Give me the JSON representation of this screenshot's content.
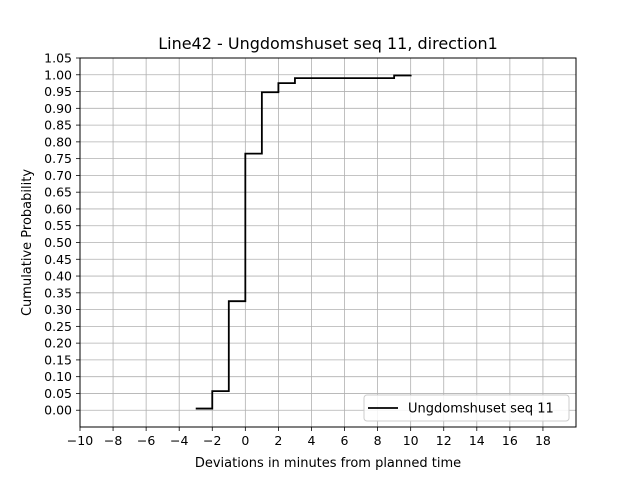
{
  "chart_data": {
    "type": "line",
    "step": "post",
    "title": "Line42 - Ungdomshuset seq 11, direction1",
    "xlabel": "Deviations in minutes from planned time",
    "ylabel": "Cumulative Probability",
    "xlim": [
      -10,
      20
    ],
    "ylim": [
      -0.05,
      1.05
    ],
    "grid": true,
    "xticks": [
      -10,
      -8,
      -6,
      -4,
      -2,
      0,
      2,
      4,
      6,
      8,
      10,
      12,
      14,
      16,
      18
    ],
    "xtick_labels": [
      "−10",
      "−8",
      "−6",
      "−4",
      "−2",
      "0",
      "2",
      "4",
      "6",
      "8",
      "10",
      "12",
      "14",
      "16",
      "18"
    ],
    "yticks": [
      0,
      0.05,
      0.1,
      0.15,
      0.2,
      0.25,
      0.3,
      0.35,
      0.4,
      0.45,
      0.5,
      0.55,
      0.6,
      0.65,
      0.7,
      0.75,
      0.8,
      0.85,
      0.9,
      0.95,
      1.0,
      1.05
    ],
    "ytick_labels": [
      "0.00",
      "0.05",
      "0.10",
      "0.15",
      "0.20",
      "0.25",
      "0.30",
      "0.35",
      "0.40",
      "0.45",
      "0.50",
      "0.55",
      "0.60",
      "0.65",
      "0.70",
      "0.75",
      "0.80",
      "0.85",
      "0.90",
      "0.95",
      "1.00",
      "1.05"
    ],
    "legend_position": "lower right",
    "series": [
      {
        "name": "Ungdomshuset seq 11",
        "color": "#000000",
        "x": [
          -3,
          -2,
          -1,
          0,
          1,
          2,
          3,
          9,
          10
        ],
        "y": [
          0.005,
          0.057,
          0.325,
          0.765,
          0.948,
          0.975,
          0.99,
          0.998,
          1.0
        ]
      }
    ]
  }
}
